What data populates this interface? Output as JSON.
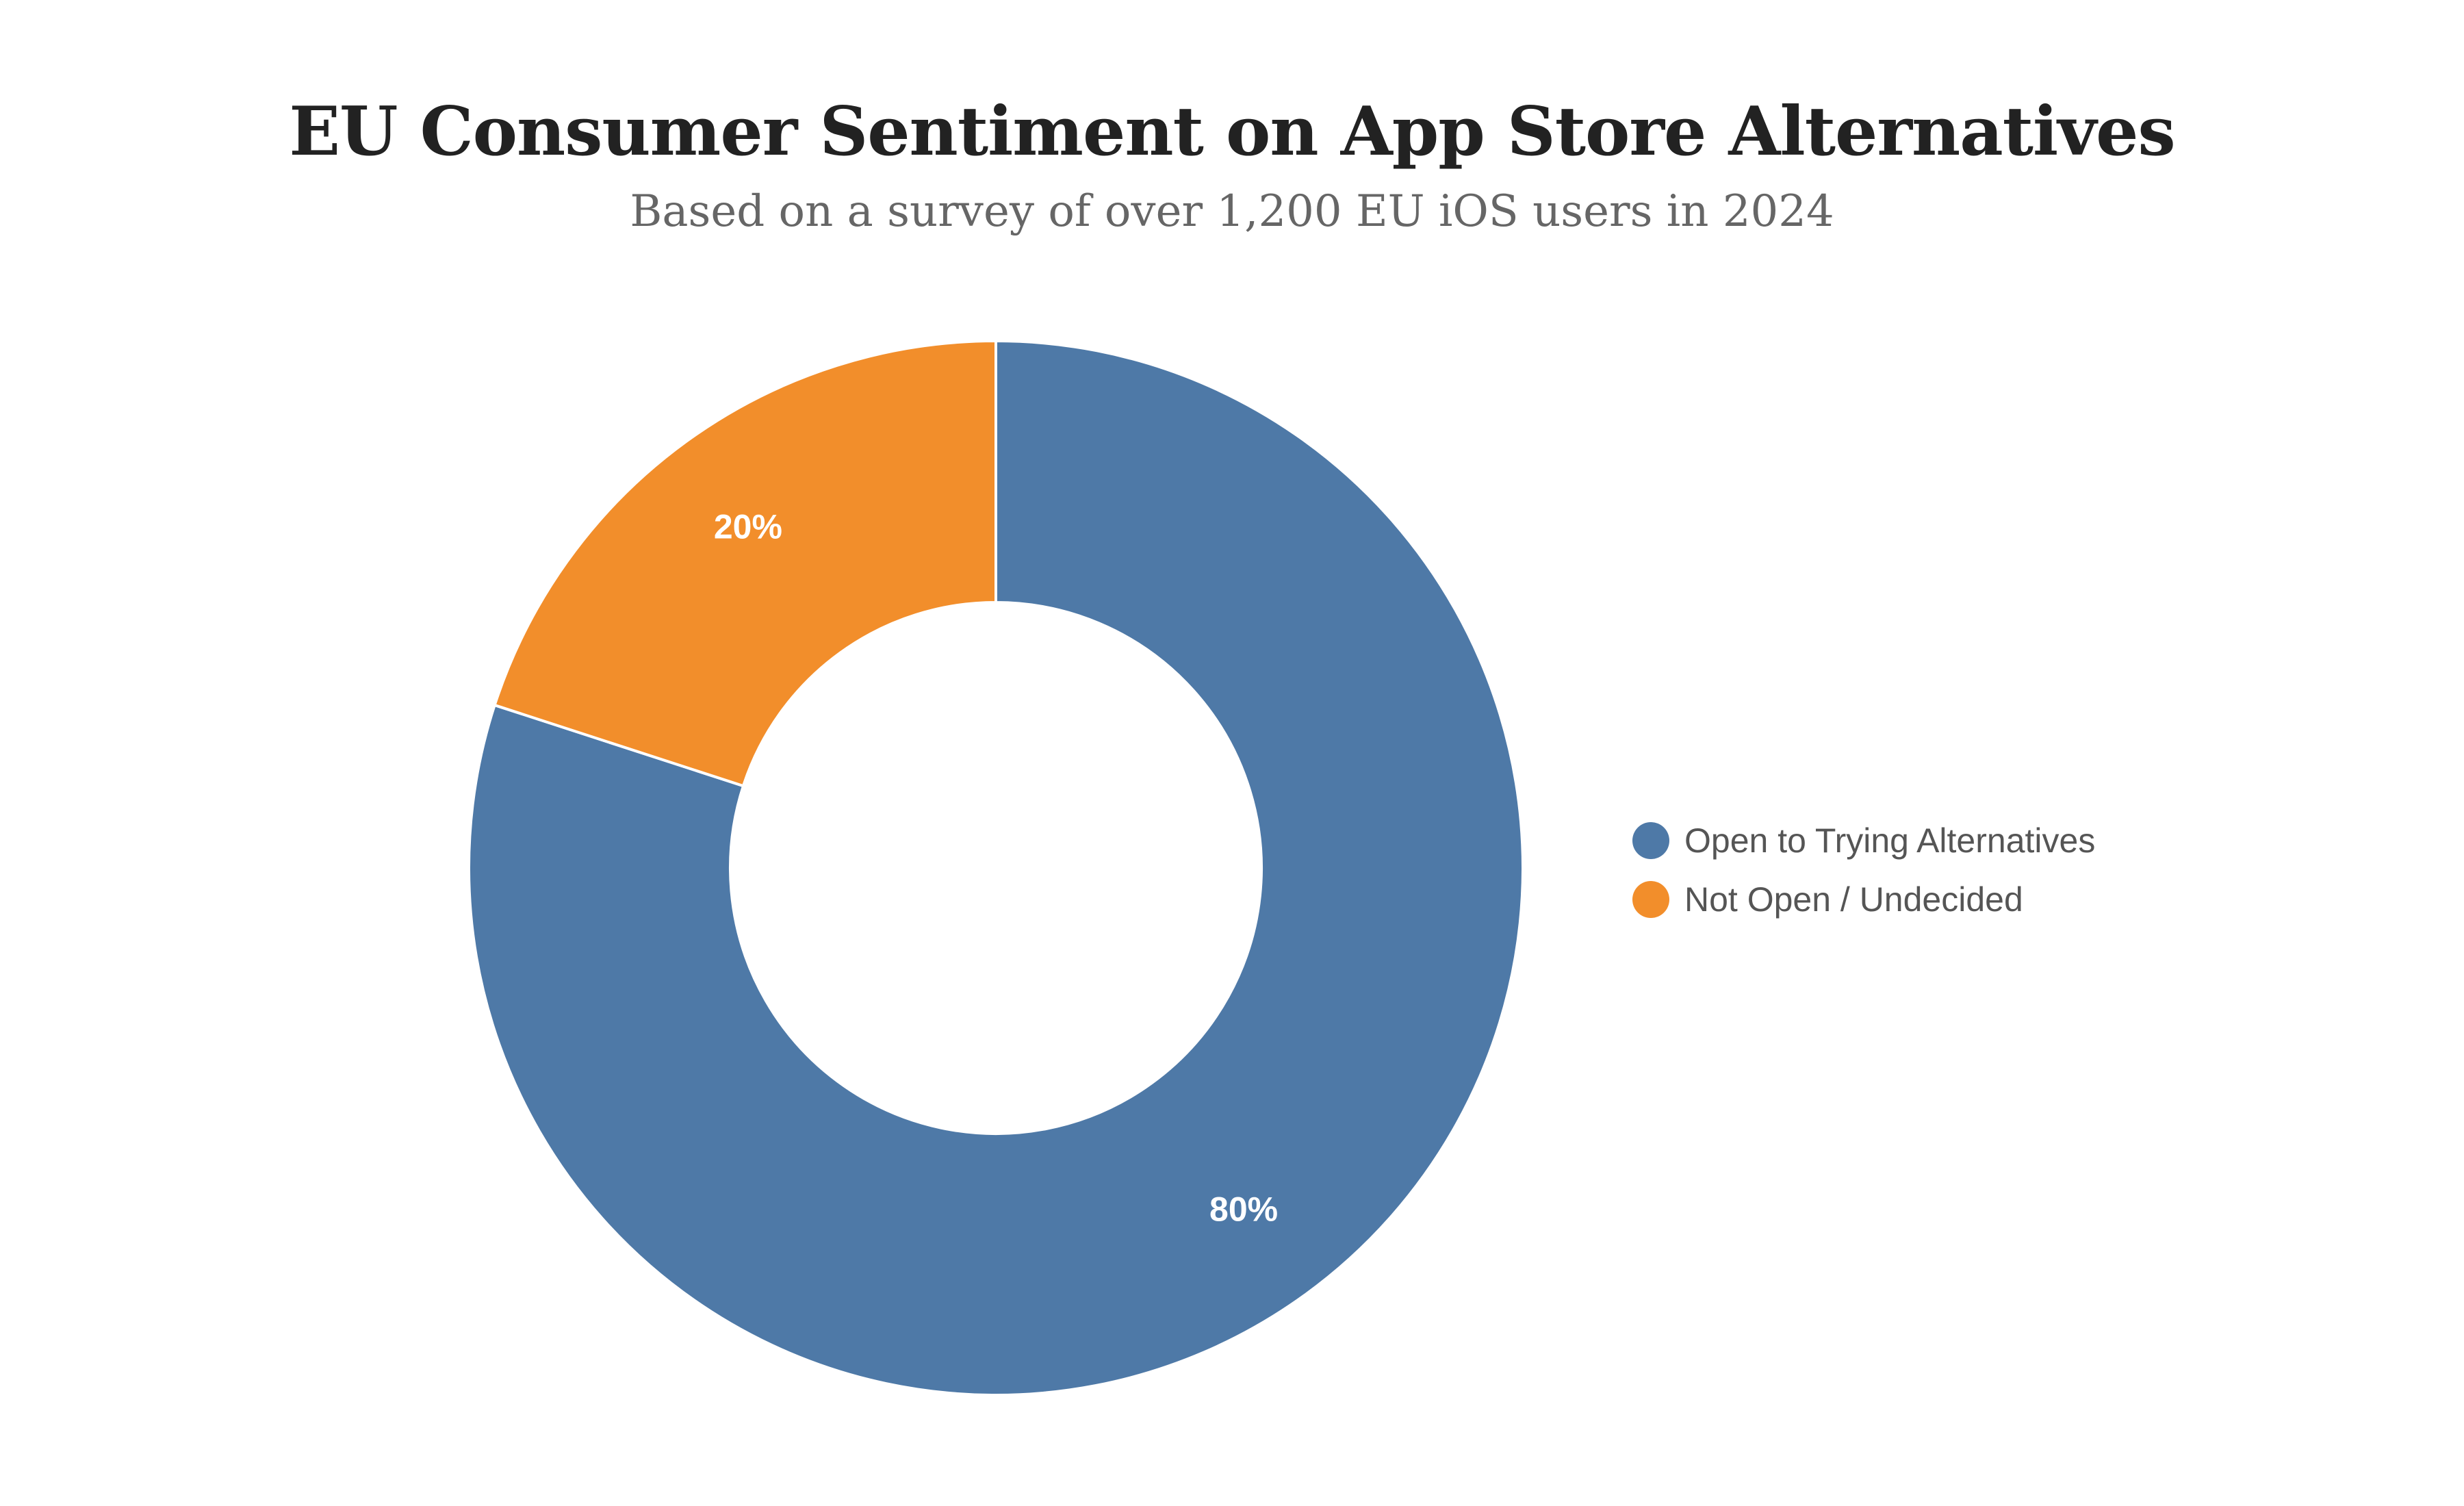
{
  "title": "EU Consumer Sentiment on App Store Alternatives",
  "subtitle": "Based on a survey of over 1,200 EU iOS users in 2024",
  "chart_data": {
    "type": "pie",
    "variant": "donut",
    "title": "EU Consumer Sentiment on App Store Alternatives",
    "subtitle": "Based on a survey of over 1,200 EU iOS users in 2024",
    "categories": [
      "Open to Trying Alternatives",
      "Not Open / Undecided"
    ],
    "values": [
      80,
      20
    ],
    "data_labels": [
      "80%",
      "20%"
    ],
    "colors": [
      "#4e79a7",
      "#f28e2b"
    ],
    "legend_position": "right"
  }
}
